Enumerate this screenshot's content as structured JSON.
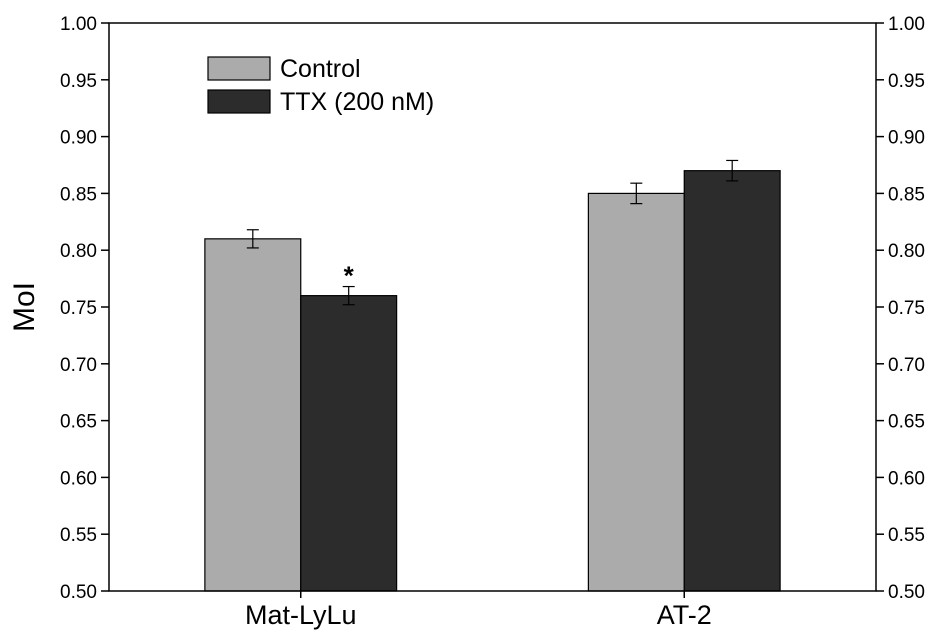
{
  "chart_data": {
    "type": "bar",
    "title": "",
    "xlabel": "",
    "ylabel": "MoI",
    "categories": [
      "Mat-LyLu",
      "AT-2"
    ],
    "series": [
      {
        "name": "Control",
        "color": "#ababab",
        "values": [
          0.81,
          0.85
        ],
        "errors": [
          0.008,
          0.009
        ]
      },
      {
        "name": "TTX (200 nM)",
        "color": "#2c2c2c",
        "values": [
          0.76,
          0.87
        ],
        "errors": [
          0.008,
          0.009
        ]
      }
    ],
    "ylim": [
      0.5,
      1.0
    ],
    "yticks": [
      "0.50",
      "0.55",
      "0.60",
      "0.65",
      "0.70",
      "0.75",
      "0.80",
      "0.85",
      "0.90",
      "0.95",
      "1.00"
    ],
    "right_axis_mirrored": true,
    "grid": false,
    "legend_position": "top-left",
    "annotations": [
      {
        "text": "*",
        "category": 0,
        "series": 1
      }
    ]
  }
}
